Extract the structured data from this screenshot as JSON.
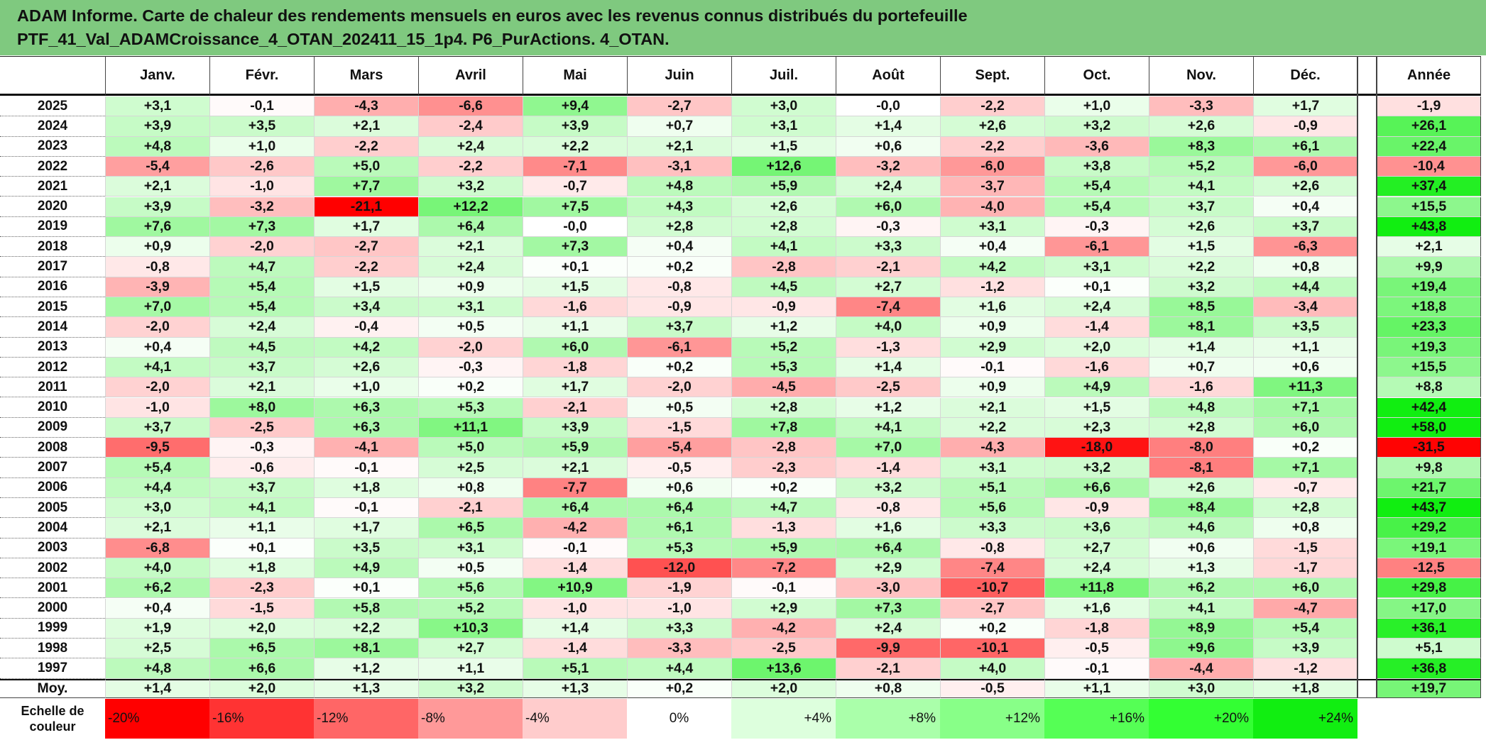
{
  "title": {
    "line1": "ADAM Informe. Carte de chaleur des rendements mensuels en euros avec les revenus connus distribués du portefeuille",
    "line2": "PTF_41_Val_ADAMCroissance_4_OTAN_202411_15_1p4. P6_PurActions. 4_OTAN."
  },
  "chart_data": {
    "type": "heatmap",
    "columns": [
      "Janv.",
      "Févr.",
      "Mars",
      "Avril",
      "Mai",
      "Juin",
      "Juil.",
      "Août",
      "Sept.",
      "Oct.",
      "Nov.",
      "Déc."
    ],
    "annual_header": "Année",
    "rows": [
      {
        "year": "2025",
        "values": [
          "+3,1",
          "-0,1",
          "-4,3",
          "-6,6",
          "+9,4",
          "-2,7",
          "+3,0",
          "-0,0",
          "-2,2",
          "+1,0",
          "-3,3",
          "+1,7"
        ],
        "annual": "-1,9"
      },
      {
        "year": "2024",
        "values": [
          "+3,9",
          "+3,5",
          "+2,1",
          "-2,4",
          "+3,9",
          "+0,7",
          "+3,1",
          "+1,4",
          "+2,6",
          "+3,2",
          "+2,6",
          "-0,9"
        ],
        "annual": "+26,1"
      },
      {
        "year": "2023",
        "values": [
          "+4,8",
          "+1,0",
          "-2,2",
          "+2,4",
          "+2,2",
          "+2,1",
          "+1,5",
          "+0,6",
          "-2,2",
          "-3,6",
          "+8,3",
          "+6,1"
        ],
        "annual": "+22,4"
      },
      {
        "year": "2022",
        "values": [
          "-5,4",
          "-2,6",
          "+5,0",
          "-2,2",
          "-7,1",
          "-3,1",
          "+12,6",
          "-3,2",
          "-6,0",
          "+3,8",
          "+5,2",
          "-6,0"
        ],
        "annual": "-10,4"
      },
      {
        "year": "2021",
        "values": [
          "+2,1",
          "-1,0",
          "+7,7",
          "+3,2",
          "-0,7",
          "+4,8",
          "+5,9",
          "+2,4",
          "-3,7",
          "+5,4",
          "+4,1",
          "+2,6"
        ],
        "annual": "+37,4"
      },
      {
        "year": "2020",
        "values": [
          "+3,9",
          "-3,2",
          "-21,1",
          "+12,2",
          "+7,5",
          "+4,3",
          "+2,6",
          "+6,0",
          "-4,0",
          "+5,4",
          "+3,7",
          "+0,4"
        ],
        "annual": "+15,5"
      },
      {
        "year": "2019",
        "values": [
          "+7,6",
          "+7,3",
          "+1,7",
          "+6,4",
          "-0,0",
          "+2,8",
          "+2,8",
          "-0,3",
          "+3,1",
          "-0,3",
          "+2,6",
          "+3,7"
        ],
        "annual": "+43,8"
      },
      {
        "year": "2018",
        "values": [
          "+0,9",
          "-2,0",
          "-2,7",
          "+2,1",
          "+7,3",
          "+0,4",
          "+4,1",
          "+3,3",
          "+0,4",
          "-6,1",
          "+1,5",
          "-6,3"
        ],
        "annual": "+2,1"
      },
      {
        "year": "2017",
        "values": [
          "-0,8",
          "+4,7",
          "-2,2",
          "+2,4",
          "+0,1",
          "+0,2",
          "-2,8",
          "-2,1",
          "+4,2",
          "+3,1",
          "+2,2",
          "+0,8"
        ],
        "annual": "+9,9"
      },
      {
        "year": "2016",
        "values": [
          "-3,9",
          "+5,4",
          "+1,5",
          "+0,9",
          "+1,5",
          "-0,8",
          "+4,5",
          "+2,7",
          "-1,2",
          "+0,1",
          "+3,2",
          "+4,4"
        ],
        "annual": "+19,4"
      },
      {
        "year": "2015",
        "values": [
          "+7,0",
          "+5,4",
          "+3,4",
          "+3,1",
          "-1,6",
          "-0,9",
          "-0,9",
          "-7,4",
          "+1,6",
          "+2,4",
          "+8,5",
          "-3,4"
        ],
        "annual": "+18,8"
      },
      {
        "year": "2014",
        "values": [
          "-2,0",
          "+2,4",
          "-0,4",
          "+0,5",
          "+1,1",
          "+3,7",
          "+1,2",
          "+4,0",
          "+0,9",
          "-1,4",
          "+8,1",
          "+3,5"
        ],
        "annual": "+23,3"
      },
      {
        "year": "2013",
        "values": [
          "+0,4",
          "+4,5",
          "+4,2",
          "-2,0",
          "+6,0",
          "-6,1",
          "+5,2",
          "-1,3",
          "+2,9",
          "+2,0",
          "+1,4",
          "+1,1"
        ],
        "annual": "+19,3"
      },
      {
        "year": "2012",
        "values": [
          "+4,1",
          "+3,7",
          "+2,6",
          "-0,3",
          "-1,8",
          "+0,2",
          "+5,3",
          "+1,4",
          "-0,1",
          "-1,6",
          "+0,7",
          "+0,6"
        ],
        "annual": "+15,5"
      },
      {
        "year": "2011",
        "values": [
          "-2,0",
          "+2,1",
          "+1,0",
          "+0,2",
          "+1,7",
          "-2,0",
          "-4,5",
          "-2,5",
          "+0,9",
          "+4,9",
          "-1,6",
          "+11,3"
        ],
        "annual": "+8,8"
      },
      {
        "year": "2010",
        "values": [
          "-1,0",
          "+8,0",
          "+6,3",
          "+5,3",
          "-2,1",
          "+0,5",
          "+2,8",
          "+1,2",
          "+2,1",
          "+1,5",
          "+4,8",
          "+7,1"
        ],
        "annual": "+42,4"
      },
      {
        "year": "2009",
        "values": [
          "+3,7",
          "-2,5",
          "+6,3",
          "+11,1",
          "+3,9",
          "-1,5",
          "+7,8",
          "+4,1",
          "+2,2",
          "+2,3",
          "+2,8",
          "+6,0"
        ],
        "annual": "+58,0"
      },
      {
        "year": "2008",
        "values": [
          "-9,5",
          "-0,3",
          "-4,1",
          "+5,0",
          "+5,9",
          "-5,4",
          "-2,8",
          "+7,0",
          "-4,3",
          "-18,0",
          "-8,0",
          "+0,2"
        ],
        "annual": "-31,5"
      },
      {
        "year": "2007",
        "values": [
          "+5,4",
          "-0,6",
          "-0,1",
          "+2,5",
          "+2,1",
          "-0,5",
          "-2,3",
          "-1,4",
          "+3,1",
          "+3,2",
          "-8,1",
          "+7,1"
        ],
        "annual": "+9,8"
      },
      {
        "year": "2006",
        "values": [
          "+4,4",
          "+3,7",
          "+1,8",
          "+0,8",
          "-7,7",
          "+0,6",
          "+0,2",
          "+3,2",
          "+5,1",
          "+6,6",
          "+2,6",
          "-0,7"
        ],
        "annual": "+21,7"
      },
      {
        "year": "2005",
        "values": [
          "+3,0",
          "+4,1",
          "-0,1",
          "-2,1",
          "+6,4",
          "+6,4",
          "+4,7",
          "-0,8",
          "+5,6",
          "-0,9",
          "+8,4",
          "+2,8"
        ],
        "annual": "+43,7"
      },
      {
        "year": "2004",
        "values": [
          "+2,1",
          "+1,1",
          "+1,7",
          "+6,5",
          "-4,2",
          "+6,1",
          "-1,3",
          "+1,6",
          "+3,3",
          "+3,6",
          "+4,6",
          "+0,8"
        ],
        "annual": "+29,2"
      },
      {
        "year": "2003",
        "values": [
          "-6,8",
          "+0,1",
          "+3,5",
          "+3,1",
          "-0,1",
          "+5,3",
          "+5,9",
          "+6,4",
          "-0,8",
          "+2,7",
          "+0,6",
          "-1,5"
        ],
        "annual": "+19,1"
      },
      {
        "year": "2002",
        "values": [
          "+4,0",
          "+1,8",
          "+4,9",
          "+0,5",
          "-1,4",
          "-12,0",
          "-7,2",
          "+2,9",
          "-7,4",
          "+2,4",
          "+1,3",
          "-1,7"
        ],
        "annual": "-12,5"
      },
      {
        "year": "2001",
        "values": [
          "+6,2",
          "-2,3",
          "+0,1",
          "+5,6",
          "+10,9",
          "-1,9",
          "-0,1",
          "-3,0",
          "-10,7",
          "+11,8",
          "+6,2",
          "+6,0"
        ],
        "annual": "+29,8"
      },
      {
        "year": "2000",
        "values": [
          "+0,4",
          "-1,5",
          "+5,8",
          "+5,2",
          "-1,0",
          "-1,0",
          "+2,9",
          "+7,3",
          "-2,7",
          "+1,6",
          "+4,1",
          "-4,7"
        ],
        "annual": "+17,0"
      },
      {
        "year": "1999",
        "values": [
          "+1,9",
          "+2,0",
          "+2,2",
          "+10,3",
          "+1,4",
          "+3,3",
          "-4,2",
          "+2,4",
          "+0,2",
          "-1,8",
          "+8,9",
          "+5,4"
        ],
        "annual": "+36,1"
      },
      {
        "year": "1998",
        "values": [
          "+2,5",
          "+6,5",
          "+8,1",
          "+2,7",
          "-1,4",
          "-3,3",
          "-2,5",
          "-9,9",
          "-10,1",
          "-0,5",
          "+9,6",
          "+3,9"
        ],
        "annual": "+5,1"
      },
      {
        "year": "1997",
        "values": [
          "+4,8",
          "+6,6",
          "+1,2",
          "+1,1",
          "+5,1",
          "+4,4",
          "+13,6",
          "-2,1",
          "+4,0",
          "-0,1",
          "-4,4",
          "-1,2"
        ],
        "annual": "+36,8"
      }
    ],
    "average": {
      "label": "Moy.",
      "values": [
        "+1,4",
        "+2,0",
        "+1,3",
        "+3,2",
        "+1,3",
        "+0,2",
        "+2,0",
        "+0,8",
        "-0,5",
        "+1,1",
        "+3,0",
        "+1,8"
      ],
      "annual": "+19,7"
    },
    "legend": {
      "label_line1": "Echelle de",
      "label_line2": "couleur",
      "steps": [
        {
          "label": "-20%",
          "value": -20,
          "color": "#ff0000"
        },
        {
          "label": "-16%",
          "value": -16,
          "color": "#ff3333"
        },
        {
          "label": "-12%",
          "value": -12,
          "color": "#ff6666"
        },
        {
          "label": "-8%",
          "value": -8,
          "color": "#ff9999"
        },
        {
          "label": "-4%",
          "value": -4,
          "color": "#ffcccc"
        },
        {
          "label": "0%",
          "value": 0,
          "color": "#ffffff"
        },
        {
          "label": "+4%",
          "value": 4,
          "color": "#ddffdd"
        },
        {
          "label": "+8%",
          "value": 8,
          "color": "#aaffaa"
        },
        {
          "label": "+12%",
          "value": 12,
          "color": "#88ff88"
        },
        {
          "label": "+16%",
          "value": 16,
          "color": "#55ff55"
        },
        {
          "label": "+20%",
          "value": 20,
          "color": "#33ff33"
        },
        {
          "label": "+24%",
          "value": 24,
          "color": "#11ee11"
        }
      ]
    },
    "colors": {
      "negative_max": "#ff0000",
      "neutral": "#ffffff",
      "positive_max": "#11ee11",
      "title_bar": "#7fc97f"
    }
  }
}
